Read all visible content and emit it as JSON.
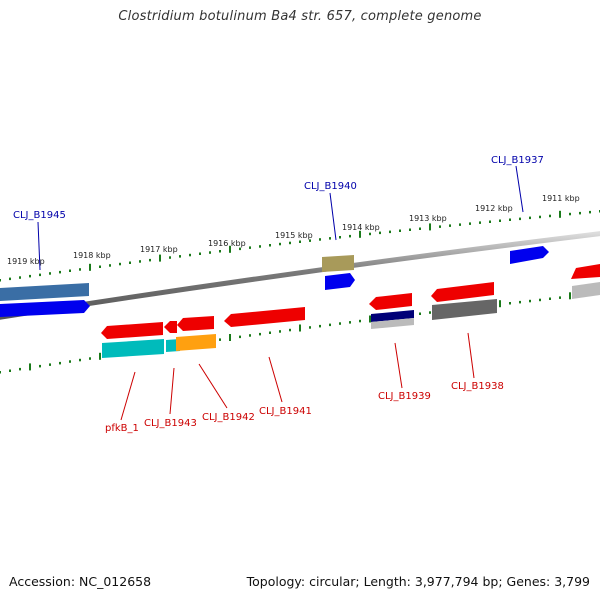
{
  "title": "Clostridium botulinum Ba4 str. 657, complete genome",
  "accession": "Accession: NC_012658",
  "summary": "Topology: circular; Length: 3,977,794 bp; Genes: 3,799",
  "colors": {
    "backbone": "#8a8a8a",
    "ticks": "#1a7a1a",
    "label_top": "#0000aa",
    "label_bottom": "#cc0000"
  },
  "scale_labels": [
    "1919 kbp",
    "1918 kbp",
    "1917 kbp",
    "1916 kbp",
    "1915 kbp",
    "1914 kbp",
    "1913 kbp",
    "1912 kbp",
    "1911 kbp"
  ],
  "gene_labels": {
    "top": [
      "CLJ_B1945",
      "CLJ_B1940",
      "CLJ_B1937"
    ],
    "bottom": [
      "pfkB_1",
      "CLJ_B1943",
      "CLJ_B1942",
      "CLJ_B1941",
      "CLJ_B1939",
      "CLJ_B1938"
    ]
  }
}
